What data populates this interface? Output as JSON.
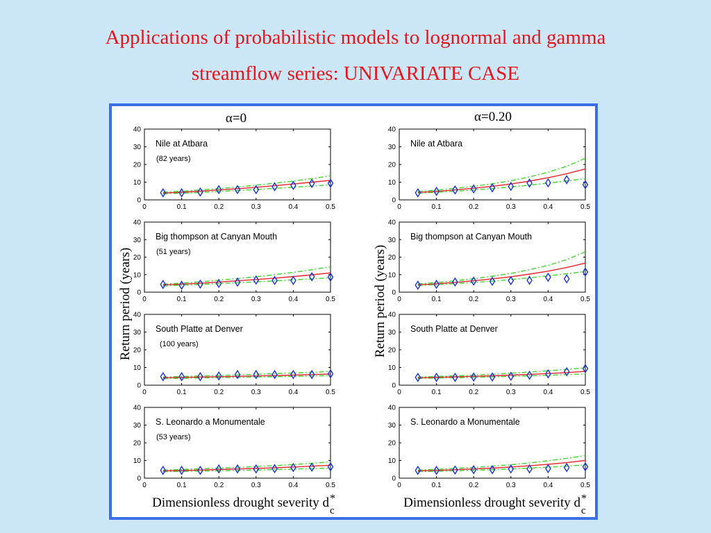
{
  "slide": {
    "title_line1": "Applications of probabilistic models to lognormal and gamma",
    "title_line2": "streamflow series: UNIVARIATE CASE",
    "title_color": "#e8141c",
    "frame_color": "#3b6fe6",
    "background_color": "#cce8f8"
  },
  "figure": {
    "column_titles": [
      "α=0",
      "α=0.20"
    ],
    "ylabel": "Return period (years)",
    "xlabel": "Dimensionless drought severity d",
    "xlabel_subscript": "c",
    "xlabel_superscript": "*",
    "colors": {
      "model": "#e8252b",
      "bounds": "#3ed42e",
      "observed": "#1a33d6",
      "axes": "#000000"
    }
  },
  "chart_data": [
    {
      "type": "line",
      "column": "α=0",
      "station": "Nile at Atbara",
      "record": "(82 years)",
      "x": [
        0.05,
        0.1,
        0.15,
        0.2,
        0.25,
        0.3,
        0.35,
        0.4,
        0.45,
        0.5
      ],
      "xlim": [
        0,
        0.5
      ],
      "ylim": [
        0,
        40
      ],
      "xticks": [
        "0",
        "0.1",
        "0.2",
        "0.3",
        "0.4",
        "0.5"
      ],
      "yticks": [
        "0",
        "10",
        "20",
        "30",
        "40"
      ],
      "series": [
        {
          "kind": "model",
          "values": [
            3.9,
            4.3,
            4.9,
            5.6,
            6.3,
            7.1,
            8.0,
            9.0,
            10.0,
            11.0
          ]
        },
        {
          "kind": "upper",
          "values": [
            4.4,
            4.9,
            5.6,
            6.4,
            7.3,
            8.3,
            9.4,
            10.6,
            12.0,
            13.6
          ]
        },
        {
          "kind": "lower",
          "values": [
            3.4,
            3.8,
            4.2,
            4.8,
            5.3,
            5.9,
            6.5,
            7.1,
            7.8,
            8.5
          ]
        },
        {
          "kind": "observed",
          "values": [
            4.0,
            4.0,
            4.4,
            5.8,
            5.8,
            5.8,
            7.4,
            8.2,
            9.3,
            9.4
          ]
        }
      ]
    },
    {
      "type": "line",
      "column": "α=0.20",
      "station": "Nile at Atbara",
      "record": "",
      "x": [
        0.05,
        0.1,
        0.15,
        0.2,
        0.25,
        0.3,
        0.35,
        0.4,
        0.45,
        0.5
      ],
      "xlim": [
        0,
        0.5
      ],
      "ylim": [
        0,
        40
      ],
      "xticks": [
        "0",
        "0.1",
        "0.2",
        "0.3",
        "0.4",
        "0.5"
      ],
      "yticks": [
        "0",
        "10",
        "20",
        "30",
        "40"
      ],
      "series": [
        {
          "kind": "model",
          "values": [
            4.2,
            4.8,
            5.6,
            6.6,
            7.7,
            9.0,
            10.6,
            12.5,
            14.8,
            17.5
          ]
        },
        {
          "kind": "upper",
          "values": [
            4.7,
            5.5,
            6.5,
            7.7,
            9.1,
            10.8,
            13.0,
            15.6,
            19.0,
            23.5
          ]
        },
        {
          "kind": "lower",
          "values": [
            3.8,
            4.3,
            4.9,
            5.6,
            6.4,
            7.3,
            8.3,
            9.5,
            10.7,
            12.0
          ]
        },
        {
          "kind": "observed",
          "values": [
            4.0,
            4.8,
            5.6,
            6.2,
            6.8,
            7.6,
            9.5,
            9.6,
            11.4,
            8.6
          ]
        }
      ]
    },
    {
      "type": "line",
      "column": "α=0",
      "station": "Big thompson at Canyan Mouth",
      "record": "(51 years)",
      "x": [
        0.05,
        0.1,
        0.15,
        0.2,
        0.25,
        0.3,
        0.35,
        0.4,
        0.45,
        0.5
      ],
      "xlim": [
        0,
        0.5
      ],
      "ylim": [
        0,
        40
      ],
      "xticks": [
        "0",
        "0.1",
        "0.2",
        "0.3",
        "0.4",
        "0.5"
      ],
      "yticks": [
        "0",
        "10",
        "20",
        "30",
        "40"
      ],
      "series": [
        {
          "kind": "model",
          "values": [
            4.1,
            4.6,
            5.1,
            5.8,
            6.5,
            7.2,
            8.0,
            8.9,
            9.9,
            11.0
          ]
        },
        {
          "kind": "upper",
          "values": [
            4.6,
            5.2,
            5.9,
            6.8,
            7.8,
            8.8,
            10.0,
            11.3,
            12.8,
            14.5
          ]
        },
        {
          "kind": "lower",
          "values": [
            3.6,
            4.0,
            4.4,
            4.9,
            5.4,
            5.9,
            6.4,
            7.0,
            7.6,
            8.2
          ]
        },
        {
          "kind": "observed",
          "values": [
            4.4,
            4.0,
            4.6,
            5.0,
            5.7,
            6.9,
            6.7,
            6.7,
            8.8,
            8.6
          ]
        }
      ]
    },
    {
      "type": "line",
      "column": "α=0.20",
      "station": "Big thompson at Canyan Mouth",
      "record": "",
      "x": [
        0.05,
        0.1,
        0.15,
        0.2,
        0.25,
        0.3,
        0.35,
        0.4,
        0.45,
        0.5
      ],
      "xlim": [
        0,
        0.5
      ],
      "ylim": [
        0,
        40
      ],
      "xticks": [
        "0",
        "0.1",
        "0.2",
        "0.3",
        "0.4",
        "0.5"
      ],
      "yticks": [
        "0",
        "10",
        "20",
        "30",
        "40"
      ],
      "series": [
        {
          "kind": "model",
          "values": [
            4.2,
            4.8,
            5.6,
            6.5,
            7.6,
            8.8,
            10.3,
            12.0,
            14.1,
            16.6
          ]
        },
        {
          "kind": "upper",
          "values": [
            4.7,
            5.5,
            6.5,
            7.7,
            9.1,
            10.7,
            12.8,
            15.3,
            18.6,
            23.0
          ]
        },
        {
          "kind": "lower",
          "values": [
            3.8,
            4.3,
            4.9,
            5.6,
            6.3,
            7.2,
            8.2,
            9.3,
            10.5,
            11.8
          ]
        },
        {
          "kind": "observed",
          "values": [
            4.0,
            4.5,
            5.8,
            6.3,
            6.2,
            6.6,
            6.8,
            8.5,
            7.6,
            11.5
          ]
        }
      ]
    },
    {
      "type": "line",
      "column": "α=0",
      "station": "South Platte at Denver",
      "record": "(100 years)",
      "x": [
        0.05,
        0.1,
        0.15,
        0.2,
        0.25,
        0.3,
        0.35,
        0.4,
        0.45,
        0.5
      ],
      "xlim": [
        0,
        0.5
      ],
      "ylim": [
        0,
        40
      ],
      "xticks": [
        "0",
        "0.1",
        "0.2",
        "0.3",
        "0.4",
        "0.5"
      ],
      "yticks": [
        "0",
        "10",
        "20",
        "30",
        "40"
      ],
      "series": [
        {
          "kind": "model",
          "values": [
            4.2,
            4.4,
            4.6,
            4.8,
            5.0,
            5.2,
            5.4,
            5.7,
            6.0,
            6.3
          ]
        },
        {
          "kind": "upper",
          "values": [
            4.6,
            4.9,
            5.2,
            5.5,
            5.8,
            6.1,
            6.5,
            6.9,
            7.3,
            7.8
          ]
        },
        {
          "kind": "lower",
          "values": [
            3.8,
            3.9,
            4.1,
            4.3,
            4.4,
            4.6,
            4.8,
            5.0,
            5.2,
            5.4
          ]
        },
        {
          "kind": "observed",
          "values": [
            4.8,
            4.8,
            4.8,
            5.2,
            6.0,
            6.0,
            6.0,
            6.0,
            6.0,
            6.4
          ]
        }
      ]
    },
    {
      "type": "line",
      "column": "α=0.20",
      "station": "South Platte at Denver",
      "record": "",
      "x": [
        0.05,
        0.1,
        0.15,
        0.2,
        0.25,
        0.3,
        0.35,
        0.4,
        0.45,
        0.5
      ],
      "xlim": [
        0,
        0.5
      ],
      "ylim": [
        0,
        40
      ],
      "xticks": [
        "0",
        "0.1",
        "0.2",
        "0.3",
        "0.4",
        "0.5"
      ],
      "yticks": [
        "0",
        "10",
        "20",
        "30",
        "40"
      ],
      "series": [
        {
          "kind": "model",
          "values": [
            4.2,
            4.4,
            4.7,
            5.0,
            5.3,
            5.7,
            6.1,
            6.6,
            7.1,
            7.8
          ]
        },
        {
          "kind": "upper",
          "values": [
            4.6,
            4.9,
            5.3,
            5.7,
            6.2,
            6.8,
            7.4,
            8.1,
            8.9,
            9.8
          ]
        },
        {
          "kind": "lower",
          "values": [
            3.8,
            4.0,
            4.2,
            4.4,
            4.7,
            5.0,
            5.3,
            5.6,
            6.0,
            6.4
          ]
        },
        {
          "kind": "observed",
          "values": [
            4.4,
            4.4,
            4.4,
            4.6,
            4.6,
            5.0,
            5.6,
            6.4,
            7.6,
            9.4
          ]
        }
      ]
    },
    {
      "type": "line",
      "column": "α=0",
      "station": "S. Leonardo a Monumentale",
      "record": "(53 years)",
      "x": [
        0.05,
        0.1,
        0.15,
        0.2,
        0.25,
        0.3,
        0.35,
        0.4,
        0.45,
        0.5
      ],
      "xlim": [
        0,
        0.5
      ],
      "ylim": [
        0,
        40
      ],
      "xticks": [
        "0",
        "0.1",
        "0.2",
        "0.3",
        "0.4",
        "0.5"
      ],
      "yticks": [
        "0",
        "10",
        "20",
        "30",
        "40"
      ],
      "series": [
        {
          "kind": "model",
          "values": [
            4.1,
            4.3,
            4.6,
            4.9,
            5.2,
            5.5,
            5.9,
            6.3,
            6.8,
            7.3
          ]
        },
        {
          "kind": "upper",
          "values": [
            4.6,
            4.9,
            5.3,
            5.7,
            6.1,
            6.6,
            7.1,
            7.7,
            8.4,
            9.2
          ]
        },
        {
          "kind": "lower",
          "values": [
            3.7,
            3.8,
            4.0,
            4.2,
            4.4,
            4.6,
            4.9,
            5.1,
            5.4,
            5.7
          ]
        },
        {
          "kind": "observed",
          "values": [
            4.4,
            4.4,
            4.4,
            5.2,
            5.2,
            5.2,
            5.4,
            6.0,
            6.2,
            6.4
          ]
        }
      ]
    },
    {
      "type": "line",
      "column": "α=0.20",
      "station": "S. Leonardo a Monumentale",
      "record": "",
      "x": [
        0.05,
        0.1,
        0.15,
        0.2,
        0.25,
        0.3,
        0.35,
        0.4,
        0.45,
        0.5
      ],
      "xlim": [
        0,
        0.5
      ],
      "ylim": [
        0,
        40
      ],
      "xticks": [
        "0",
        "0.1",
        "0.2",
        "0.3",
        "0.4",
        "0.5"
      ],
      "yticks": [
        "0",
        "10",
        "20",
        "30",
        "40"
      ],
      "series": [
        {
          "kind": "model",
          "values": [
            4.1,
            4.4,
            4.8,
            5.2,
            5.7,
            6.3,
            7.0,
            7.8,
            8.8,
            10.0
          ]
        },
        {
          "kind": "upper",
          "values": [
            4.6,
            5.0,
            5.5,
            6.1,
            6.8,
            7.6,
            8.6,
            9.8,
            11.2,
            12.8
          ]
        },
        {
          "kind": "lower",
          "values": [
            3.7,
            3.9,
            4.2,
            4.5,
            4.8,
            5.2,
            5.7,
            6.2,
            6.8,
            7.5
          ]
        },
        {
          "kind": "observed",
          "values": [
            4.4,
            4.4,
            4.6,
            4.8,
            4.8,
            5.2,
            5.2,
            5.4,
            6.0,
            6.4
          ]
        }
      ]
    }
  ]
}
